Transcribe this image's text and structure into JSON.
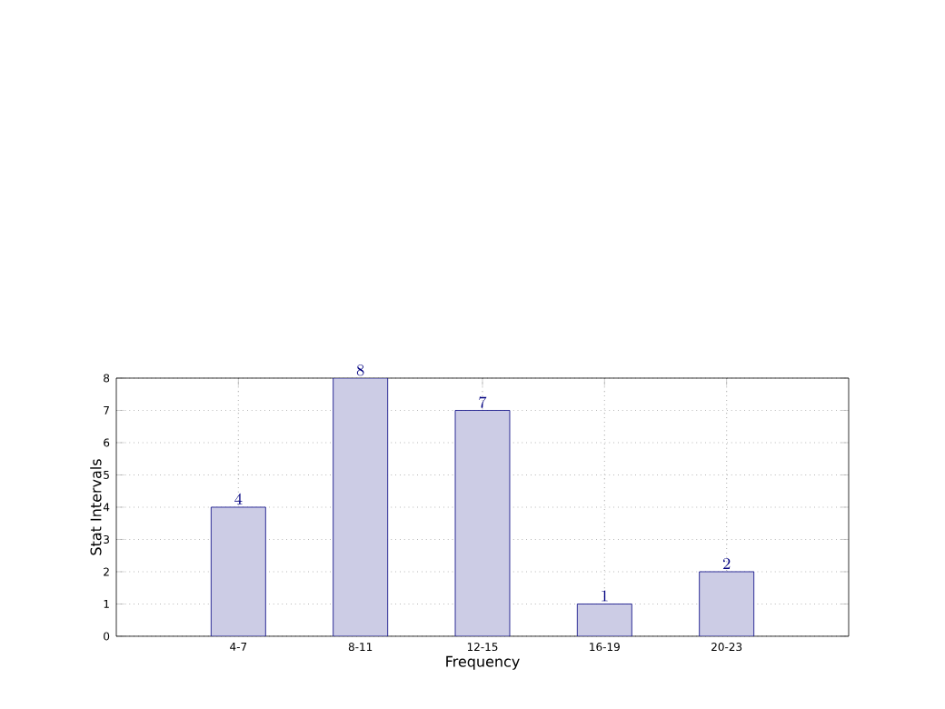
{
  "chart_data": {
    "type": "bar",
    "xlabel": "Frequency",
    "ylabel": "Stat Intervals",
    "categories": [
      "4-7",
      "8-11",
      "12-15",
      "16-19",
      "20-23"
    ],
    "values": [
      4,
      8,
      7,
      1,
      2
    ],
    "color": "#ccccE5",
    "ylim": [
      0,
      8
    ],
    "yticks": [
      0,
      1,
      2,
      3,
      4,
      5,
      6,
      7,
      8
    ],
    "grid": true,
    "data_labels": true
  }
}
